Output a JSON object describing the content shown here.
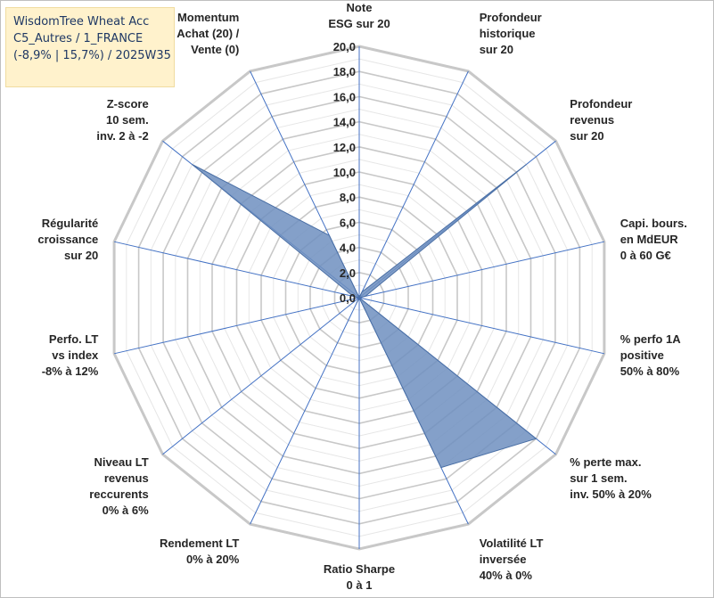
{
  "title_box": {
    "line1": "WisdomTree Wheat Acc",
    "line2": "C5_Autres / 1_FRANCE",
    "line3": "(-8,9% | 15,7%) / 2025W35"
  },
  "chart_data": {
    "type": "radar",
    "rmin": 0,
    "rmax": 20,
    "tick_step": 2,
    "minor_step": 1,
    "tick_labels": [
      "0,0",
      "2,0",
      "4,0",
      "6,0",
      "8,0",
      "10,0",
      "12,0",
      "14,0",
      "16,0",
      "18,0",
      "20,0"
    ],
    "colors": {
      "fill": "#6f8fbf",
      "stroke": "#4a6fa5",
      "grid": "#c8c8c8",
      "minor_grid": "#e6e6e6",
      "spoke": "#4472c4"
    },
    "axes": [
      {
        "label": [
          "Note",
          "ESG sur 20"
        ],
        "value": 0
      },
      {
        "label": [
          "Profondeur",
          "historique",
          "sur 20"
        ],
        "value": 0.5
      },
      {
        "label": [
          "Profondeur",
          "revenus",
          "sur 20"
        ],
        "value": 17
      },
      {
        "label": [
          "Capi. bours.",
          "en MdEUR",
          "0 à 60 G€"
        ],
        "value": 0.5
      },
      {
        "label": [
          "% perfo 1A",
          "positive",
          "50% à 80%"
        ],
        "value": 0
      },
      {
        "label": [
          "% perte max.",
          "sur 1 sem.",
          "inv. 50% à 20%"
        ],
        "value": 18
      },
      {
        "label": [
          "Volatilité LT",
          "inversée",
          "40% à 0%"
        ],
        "value": 15
      },
      {
        "label": [
          "Ratio Sharpe",
          "0 à 1"
        ],
        "value": 0
      },
      {
        "label": [
          "Rendement LT",
          "0% à 20%"
        ],
        "value": 0.5
      },
      {
        "label": [
          "Niveau LT",
          "revenus",
          "reccurents",
          "0% à 6%"
        ],
        "value": 0
      },
      {
        "label": [
          "Perfo. LT",
          "vs index",
          "-8% à 12%"
        ],
        "value": 0
      },
      {
        "label": [
          "Régularité",
          "croissance",
          "sur 20"
        ],
        "value": 0.5
      },
      {
        "label": [
          "Z-score",
          "10 sem.",
          "inv. 2 à -2"
        ],
        "value": 17
      },
      {
        "label": [
          "Momentum",
          "Achat (20) /",
          "Vente (0)"
        ],
        "value": 5.5
      }
    ]
  }
}
